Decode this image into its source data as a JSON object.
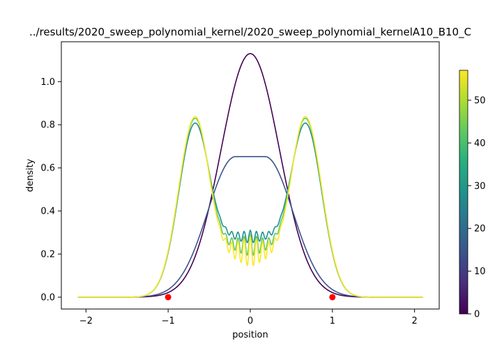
{
  "chart_data": {
    "type": "line",
    "title": "../results/2020_sweep_polynomial_kernel/2020_sweep_polynomial_kernelA10_B10_C",
    "xlabel": "position",
    "ylabel": "density",
    "xlim": [
      -2.3,
      2.3
    ],
    "ylim": [
      -0.055,
      1.185
    ],
    "x_ticks": [
      -2,
      -1,
      0,
      1,
      2
    ],
    "y_ticks": [
      0.0,
      0.2,
      0.4,
      0.6,
      0.8,
      1.0
    ],
    "grid": false,
    "x_range": [
      -2.1,
      2.1
    ],
    "series": [
      {
        "time": 0,
        "color": "#440154",
        "shape": "gaussian",
        "params": {
          "amplitude": 1.13,
          "center": 0.0,
          "sigma": 0.355
        }
      },
      {
        "time": 8,
        "color": "#3b528b",
        "shape": "plateau",
        "params": {
          "amplitude": 0.652,
          "half_width": 0.18,
          "sigma": 0.48
        }
      },
      {
        "time": 30,
        "color": "#21918c",
        "shape": "double_peak",
        "params": {
          "peak": 0.808,
          "peak_position": 0.67,
          "peak_width": 0.16,
          "outer_sigma": 0.2,
          "center_min": 0.28,
          "ripple": 0.03
        }
      },
      {
        "time": 45,
        "color": "#5ec962",
        "shape": "double_peak",
        "params": {
          "peak": 0.83,
          "peak_position": 0.67,
          "peak_width": 0.16,
          "outer_sigma": 0.2,
          "center_min": 0.24,
          "ripple": 0.05
        }
      },
      {
        "time": 57,
        "color": "#fde725",
        "shape": "double_peak",
        "params": {
          "peak": 0.838,
          "peak_position": 0.67,
          "peak_width": 0.16,
          "outer_sigma": 0.2,
          "center_min": 0.21,
          "ripple": 0.07
        }
      }
    ],
    "markers": [
      {
        "x": -1,
        "y": 0,
        "color": "#ff0000"
      },
      {
        "x": 1,
        "y": 0,
        "color": "#ff0000"
      }
    ],
    "colorbar": {
      "colormap": "viridis",
      "range": [
        0,
        57
      ],
      "ticks": [
        0,
        10,
        20,
        30,
        40,
        50
      ]
    }
  }
}
